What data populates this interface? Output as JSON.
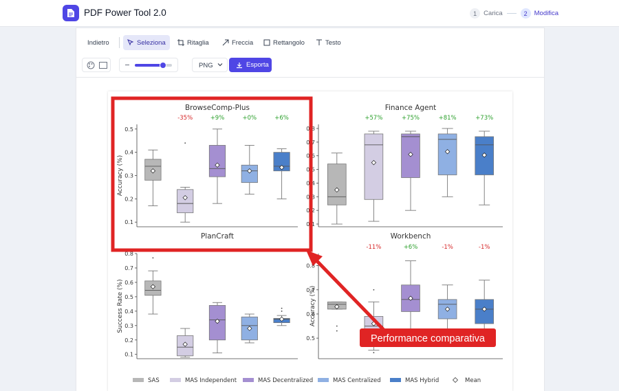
{
  "app": {
    "title": "PDF Power Tool 2.0",
    "logo_icon": "document-icon"
  },
  "steps": [
    {
      "num": "1",
      "label": "Carica",
      "state": "done"
    },
    {
      "num": "2",
      "label": "Modifica",
      "state": "active"
    }
  ],
  "toolbar": {
    "back": "Indietro",
    "select": "Seleziona",
    "crop": "Ritaglia",
    "arrow": "Freccia",
    "rect": "Rettangolo",
    "text": "Testo",
    "format": "PNG",
    "export": "Esporta",
    "stroke_level": 0.75
  },
  "colors": {
    "accent": "#4f46e5",
    "annotation_red": "#e02424"
  },
  "annotation": {
    "label": "Performance comparativa"
  },
  "chart_data": [
    {
      "type": "box",
      "title": "BrowseComp-Plus",
      "ylabel": "Accuracy (%)",
      "ylim": [
        0.08,
        0.52
      ],
      "yticks": [
        0.1,
        0.2,
        0.3,
        0.4,
        0.5
      ],
      "deltas": [
        "",
        "-35%",
        "+9%",
        "+0%",
        "+6%"
      ],
      "boxes": [
        {
          "series": "SAS",
          "whisker_low": 0.17,
          "q1": 0.28,
          "median": 0.34,
          "q3": 0.37,
          "whisker_high": 0.41,
          "mean": 0.32,
          "outliers": []
        },
        {
          "series": "MAS Independent",
          "whisker_low": 0.1,
          "q1": 0.14,
          "median": 0.18,
          "q3": 0.24,
          "whisker_high": 0.25,
          "mean": 0.205,
          "outliers": [
            0.44
          ]
        },
        {
          "series": "MAS Decentralized",
          "whisker_low": 0.18,
          "q1": 0.295,
          "median": 0.33,
          "q3": 0.43,
          "whisker_high": 0.5,
          "mean": 0.345,
          "outliers": []
        },
        {
          "series": "MAS Centralized",
          "whisker_low": 0.22,
          "q1": 0.27,
          "median": 0.32,
          "q3": 0.345,
          "whisker_high": 0.43,
          "mean": 0.32,
          "outliers": []
        },
        {
          "series": "MAS Hybrid",
          "whisker_low": 0.2,
          "q1": 0.32,
          "median": 0.34,
          "q3": 0.4,
          "whisker_high": 0.415,
          "mean": 0.335,
          "outliers": []
        }
      ]
    },
    {
      "type": "box",
      "title": "Finance Agent",
      "ylabel": "",
      "ylim": [
        0.08,
        0.83
      ],
      "yticks": [
        0.1,
        0.2,
        0.3,
        0.4,
        0.5,
        0.6,
        0.7,
        0.8
      ],
      "deltas": [
        "",
        "+57%",
        "+75%",
        "+81%",
        "+73%"
      ],
      "boxes": [
        {
          "series": "SAS",
          "whisker_low": 0.1,
          "q1": 0.24,
          "median": 0.3,
          "q3": 0.54,
          "whisker_high": 0.62,
          "mean": 0.35,
          "outliers": []
        },
        {
          "series": "MAS Independent",
          "whisker_low": 0.12,
          "q1": 0.28,
          "median": 0.68,
          "q3": 0.76,
          "whisker_high": 0.78,
          "mean": 0.55,
          "outliers": []
        },
        {
          "series": "MAS Decentralized",
          "whisker_low": 0.2,
          "q1": 0.44,
          "median": 0.74,
          "q3": 0.76,
          "whisker_high": 0.78,
          "mean": 0.61,
          "outliers": []
        },
        {
          "series": "MAS Centralized",
          "whisker_low": 0.3,
          "q1": 0.46,
          "median": 0.72,
          "q3": 0.76,
          "whisker_high": 0.8,
          "mean": 0.63,
          "outliers": []
        },
        {
          "series": "MAS Hybrid",
          "whisker_low": 0.24,
          "q1": 0.46,
          "median": 0.68,
          "q3": 0.74,
          "whisker_high": 0.78,
          "mean": 0.605,
          "outliers": []
        }
      ]
    },
    {
      "type": "box",
      "title": "PlanCraft",
      "ylabel": "Success Rate (%)",
      "ylim": [
        0.07,
        0.8
      ],
      "yticks": [
        0.1,
        0.2,
        0.3,
        0.4,
        0.5,
        0.6,
        0.7,
        0.8
      ],
      "deltas": [
        "",
        "",
        "",
        "",
        ""
      ],
      "boxes": [
        {
          "series": "SAS",
          "whisker_low": 0.38,
          "q1": 0.51,
          "median": 0.545,
          "q3": 0.61,
          "whisker_high": 0.68,
          "mean": 0.57,
          "outliers": [
            0.77
          ]
        },
        {
          "series": "MAS Independent",
          "whisker_low": 0.08,
          "q1": 0.09,
          "median": 0.15,
          "q3": 0.23,
          "whisker_high": 0.28,
          "mean": 0.17,
          "outliers": []
        },
        {
          "series": "MAS Decentralized",
          "whisker_low": 0.11,
          "q1": 0.2,
          "median": 0.34,
          "q3": 0.44,
          "whisker_high": 0.46,
          "mean": 0.33,
          "outliers": []
        },
        {
          "series": "MAS Centralized",
          "whisker_low": 0.18,
          "q1": 0.2,
          "median": 0.3,
          "q3": 0.36,
          "whisker_high": 0.38,
          "mean": 0.28,
          "outliers": []
        },
        {
          "series": "MAS Hybrid",
          "whisker_low": 0.3,
          "q1": 0.32,
          "median": 0.345,
          "q3": 0.35,
          "whisker_high": 0.37,
          "mean": 0.345,
          "outliers": [
            0.4,
            0.42
          ]
        }
      ]
    },
    {
      "type": "box",
      "title": "Workbench",
      "ylabel": "Accuracy (%)",
      "ylim": [
        0.415,
        0.85
      ],
      "yticks": [
        0.5,
        0.6,
        0.7,
        0.8
      ],
      "deltas": [
        "",
        "-11%",
        "+6%",
        "-1%",
        "-1%"
      ],
      "boxes": [
        {
          "series": "SAS",
          "whisker_low": 0.62,
          "q1": 0.62,
          "median": 0.64,
          "q3": 0.65,
          "whisker_high": 0.65,
          "mean": 0.63,
          "outliers": [
            0.53,
            0.55
          ]
        },
        {
          "series": "MAS Independent",
          "whisker_low": 0.45,
          "q1": 0.51,
          "median": 0.55,
          "q3": 0.59,
          "whisker_high": 0.65,
          "mean": 0.56,
          "outliers": [
            0.44,
            0.7
          ]
        },
        {
          "series": "MAS Decentralized",
          "whisker_low": 0.48,
          "q1": 0.61,
          "median": 0.66,
          "q3": 0.72,
          "whisker_high": 0.82,
          "mean": 0.665,
          "outliers": []
        },
        {
          "series": "MAS Centralized",
          "whisker_low": 0.52,
          "q1": 0.58,
          "median": 0.64,
          "q3": 0.66,
          "whisker_high": 0.72,
          "mean": 0.62,
          "outliers": []
        },
        {
          "series": "MAS Hybrid",
          "whisker_low": 0.5,
          "q1": 0.56,
          "median": 0.62,
          "q3": 0.66,
          "whisker_high": 0.74,
          "mean": 0.62,
          "outliers": []
        }
      ]
    }
  ],
  "legend": {
    "items": [
      {
        "label": "SAS",
        "color": "#b7b7b7"
      },
      {
        "label": "MAS Independent",
        "color": "#d3cde3"
      },
      {
        "label": "MAS Decentralized",
        "color": "#a48fd1"
      },
      {
        "label": "MAS Centralized",
        "color": "#8fb0e3"
      },
      {
        "label": "MAS Hybrid",
        "color": "#4a7fc9"
      }
    ],
    "mean_label": "Mean"
  },
  "delta_colors": {
    "positive": "#2ca02c",
    "negative": "#d62728"
  }
}
